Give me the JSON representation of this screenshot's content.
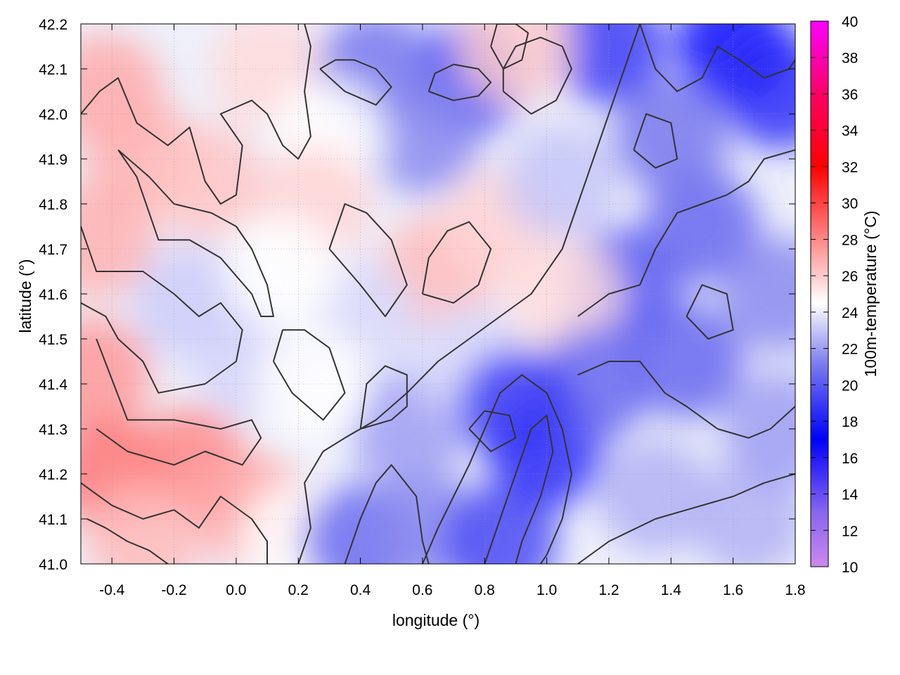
{
  "chart_data": {
    "type": "heatmap",
    "title": "",
    "xlabel": "longitude (°)",
    "ylabel": "latitude (°)",
    "colorbar_label": "100m-temperature (°C)",
    "xlim": [
      -0.5,
      1.8
    ],
    "ylim": [
      41.0,
      42.2
    ],
    "x_ticks": [
      -0.4,
      -0.2,
      0.0,
      0.2,
      0.4,
      0.6,
      0.8,
      1.0,
      1.2,
      1.4,
      1.6,
      1.8
    ],
    "x_tick_labels": [
      "-0.4",
      "-0.2",
      "0.0",
      "0.2",
      "0.4",
      "0.6",
      "0.8",
      "1.0",
      "1.2",
      "1.4",
      "1.6",
      "1.8"
    ],
    "y_ticks": [
      41.0,
      41.1,
      41.2,
      41.3,
      41.4,
      41.5,
      41.6,
      41.7,
      41.8,
      41.9,
      42.0,
      42.1,
      42.2
    ],
    "y_tick_labels": [
      "41.0",
      "41.1",
      "41.2",
      "41.3",
      "41.4",
      "41.5",
      "41.6",
      "41.7",
      "41.8",
      "41.9",
      "42.0",
      "42.1",
      "42.2"
    ],
    "colorbar_range": [
      10,
      40
    ],
    "colorbar_ticks": [
      10,
      12,
      14,
      16,
      18,
      20,
      22,
      24,
      26,
      28,
      30,
      32,
      34,
      36,
      38,
      40
    ],
    "colorbar_tick_labels": [
      "10",
      "12",
      "14",
      "16",
      "18",
      "20",
      "22",
      "24",
      "26",
      "28",
      "30",
      "32",
      "34",
      "36",
      "38",
      "40"
    ],
    "colorscale": [
      {
        "value": 10,
        "color": "#cc88ee"
      },
      {
        "value": 13,
        "color": "#8866ee"
      },
      {
        "value": 17,
        "color": "#0000ff"
      },
      {
        "value": 21,
        "color": "#7777ee"
      },
      {
        "value": 24.5,
        "color": "#ffffff"
      },
      {
        "value": 28,
        "color": "#ff8888"
      },
      {
        "value": 32,
        "color": "#ff0000"
      },
      {
        "value": 36,
        "color": "#ff0066"
      },
      {
        "value": 40,
        "color": "#ff00ff"
      }
    ],
    "grid": true,
    "contour_color": "#333333",
    "field_samples": [
      {
        "x": -0.42,
        "y": 42.05,
        "t": 27.0
      },
      {
        "x": -0.3,
        "y": 41.9,
        "t": 26.8
      },
      {
        "x": -0.1,
        "y": 41.85,
        "t": 26.2
      },
      {
        "x": 0.1,
        "y": 42.1,
        "t": 25.6
      },
      {
        "x": -0.45,
        "y": 41.72,
        "t": 26.8
      },
      {
        "x": -0.15,
        "y": 41.58,
        "t": 23.2
      },
      {
        "x": 0.05,
        "y": 41.45,
        "t": 23.4
      },
      {
        "x": -0.46,
        "y": 41.42,
        "t": 27.5
      },
      {
        "x": -0.4,
        "y": 41.2,
        "t": 28.5
      },
      {
        "x": -0.15,
        "y": 41.22,
        "t": 28.0
      },
      {
        "x": 0.05,
        "y": 41.12,
        "t": 27.0
      },
      {
        "x": -0.3,
        "y": 41.05,
        "t": 26.5
      },
      {
        "x": 0.2,
        "y": 41.05,
        "t": 24.5
      },
      {
        "x": 0.4,
        "y": 41.05,
        "t": 20.5
      },
      {
        "x": 0.6,
        "y": 41.08,
        "t": 21.5
      },
      {
        "x": 0.85,
        "y": 41.05,
        "t": 19.5
      },
      {
        "x": 0.55,
        "y": 41.3,
        "t": 22.0
      },
      {
        "x": 1.0,
        "y": 41.25,
        "t": 18.5
      },
      {
        "x": 1.35,
        "y": 41.15,
        "t": 22.5
      },
      {
        "x": 1.65,
        "y": 41.1,
        "t": 22.5
      },
      {
        "x": 1.75,
        "y": 41.3,
        "t": 22.0
      },
      {
        "x": 1.45,
        "y": 41.45,
        "t": 20.5
      },
      {
        "x": 1.25,
        "y": 41.62,
        "t": 20.0
      },
      {
        "x": 1.5,
        "y": 41.75,
        "t": 20.5
      },
      {
        "x": 1.75,
        "y": 41.6,
        "t": 21.5
      },
      {
        "x": 1.4,
        "y": 41.95,
        "t": 21.0
      },
      {
        "x": 1.6,
        "y": 42.15,
        "t": 17.5
      },
      {
        "x": 1.75,
        "y": 42.05,
        "t": 18.5
      },
      {
        "x": 1.2,
        "y": 42.15,
        "t": 19.0
      },
      {
        "x": 0.75,
        "y": 42.08,
        "t": 19.5
      },
      {
        "x": 0.9,
        "y": 42.15,
        "t": 26.0
      },
      {
        "x": 0.45,
        "y": 42.1,
        "t": 21.0
      },
      {
        "x": 0.6,
        "y": 41.95,
        "t": 21.5
      },
      {
        "x": 0.3,
        "y": 41.95,
        "t": 24.5
      },
      {
        "x": 0.25,
        "y": 41.8,
        "t": 25.8
      },
      {
        "x": 0.65,
        "y": 41.65,
        "t": 26.5
      },
      {
        "x": 0.85,
        "y": 41.75,
        "t": 25.8
      },
      {
        "x": 1.05,
        "y": 41.85,
        "t": 23.0
      },
      {
        "x": 1.05,
        "y": 41.6,
        "t": 25.5
      },
      {
        "x": 0.4,
        "y": 41.55,
        "t": 23.5
      },
      {
        "x": 0.25,
        "y": 41.4,
        "t": 24.5
      },
      {
        "x": 0.75,
        "y": 41.45,
        "t": 23.5
      },
      {
        "x": 0.15,
        "y": 41.65,
        "t": 24.5
      },
      {
        "x": 1.15,
        "y": 41.4,
        "t": 20.5
      },
      {
        "x": 0.9,
        "y": 41.35,
        "t": 19.0
      }
    ],
    "contour_paths": [
      [
        [
          -0.5,
          42.0
        ],
        [
          -0.44,
          42.05
        ],
        [
          -0.38,
          42.08
        ],
        [
          -0.32,
          41.98
        ],
        [
          -0.22,
          41.93
        ],
        [
          -0.15,
          41.97
        ],
        [
          -0.1,
          41.85
        ],
        [
          -0.05,
          41.8
        ],
        [
          0.0,
          41.82
        ],
        [
          0.02,
          41.93
        ],
        [
          -0.05,
          42.0
        ],
        [
          0.05,
          42.03
        ],
        [
          0.1,
          42.0
        ],
        [
          0.15,
          41.93
        ],
        [
          0.2,
          41.9
        ],
        [
          0.24,
          41.95
        ],
        [
          0.22,
          42.05
        ],
        [
          0.24,
          42.15
        ],
        [
          0.22,
          42.2
        ]
      ],
      [
        [
          -0.38,
          41.92
        ],
        [
          -0.32,
          41.86
        ],
        [
          -0.28,
          41.78
        ],
        [
          -0.25,
          41.72
        ],
        [
          -0.15,
          41.72
        ],
        [
          -0.05,
          41.68
        ],
        [
          0.05,
          41.6
        ],
        [
          0.08,
          41.55
        ],
        [
          0.12,
          41.55
        ],
        [
          0.1,
          41.62
        ],
        [
          0.05,
          41.7
        ],
        [
          0.0,
          41.75
        ],
        [
          -0.08,
          41.78
        ],
        [
          -0.2,
          41.8
        ],
        [
          -0.28,
          41.86
        ],
        [
          -0.38,
          41.92
        ]
      ],
      [
        [
          -0.5,
          41.75
        ],
        [
          -0.45,
          41.65
        ],
        [
          -0.3,
          41.65
        ],
        [
          -0.2,
          41.6
        ],
        [
          -0.12,
          41.55
        ],
        [
          -0.05,
          41.58
        ],
        [
          0.02,
          41.52
        ],
        [
          0.0,
          41.45
        ],
        [
          -0.1,
          41.4
        ],
        [
          -0.25,
          41.38
        ],
        [
          -0.3,
          41.45
        ],
        [
          -0.38,
          41.5
        ],
        [
          -0.42,
          41.55
        ],
        [
          -0.5,
          41.58
        ]
      ],
      [
        [
          -0.45,
          41.5
        ],
        [
          -0.35,
          41.32
        ],
        [
          -0.2,
          41.32
        ],
        [
          -0.05,
          41.3
        ],
        [
          0.05,
          41.32
        ],
        [
          0.08,
          41.28
        ],
        [
          0.02,
          41.22
        ],
        [
          -0.1,
          41.25
        ],
        [
          -0.2,
          41.22
        ],
        [
          -0.35,
          41.25
        ],
        [
          -0.45,
          41.3
        ]
      ],
      [
        [
          -0.5,
          41.18
        ],
        [
          -0.4,
          41.13
        ],
        [
          -0.3,
          41.1
        ],
        [
          -0.2,
          41.12
        ],
        [
          -0.12,
          41.08
        ],
        [
          -0.05,
          41.15
        ],
        [
          0.05,
          41.1
        ],
        [
          0.1,
          41.05
        ],
        [
          0.1,
          41.0
        ]
      ],
      [
        [
          -0.48,
          41.1
        ],
        [
          -0.42,
          41.08
        ],
        [
          -0.35,
          41.05
        ],
        [
          -0.28,
          41.03
        ],
        [
          -0.22,
          41.0
        ]
      ],
      [
        [
          0.2,
          41.0
        ],
        [
          0.24,
          41.08
        ],
        [
          0.22,
          41.18
        ],
        [
          0.28,
          41.25
        ],
        [
          0.35,
          41.28
        ],
        [
          0.45,
          41.32
        ],
        [
          0.55,
          41.38
        ],
        [
          0.65,
          41.45
        ],
        [
          0.75,
          41.5
        ],
        [
          0.85,
          41.55
        ],
        [
          0.95,
          41.6
        ],
        [
          1.05,
          41.7
        ],
        [
          1.1,
          41.8
        ],
        [
          1.15,
          41.9
        ],
        [
          1.2,
          42.0
        ],
        [
          1.25,
          42.1
        ],
        [
          1.3,
          42.2
        ]
      ],
      [
        [
          0.35,
          41.0
        ],
        [
          0.4,
          41.1
        ],
        [
          0.45,
          41.18
        ],
        [
          0.5,
          41.22
        ],
        [
          0.58,
          41.15
        ],
        [
          0.6,
          41.05
        ],
        [
          0.62,
          41.0
        ]
      ],
      [
        [
          0.6,
          41.0
        ],
        [
          0.65,
          41.08
        ],
        [
          0.7,
          41.15
        ],
        [
          0.75,
          41.22
        ],
        [
          0.8,
          41.3
        ],
        [
          0.85,
          41.38
        ],
        [
          0.92,
          41.42
        ],
        [
          1.0,
          41.38
        ],
        [
          1.05,
          41.3
        ],
        [
          1.08,
          41.2
        ],
        [
          1.05,
          41.1
        ],
        [
          1.0,
          41.02
        ],
        [
          0.98,
          41.0
        ]
      ],
      [
        [
          0.8,
          41.0
        ],
        [
          0.85,
          41.1
        ],
        [
          0.9,
          41.2
        ],
        [
          0.95,
          41.3
        ],
        [
          1.0,
          41.33
        ],
        [
          1.02,
          41.25
        ],
        [
          0.98,
          41.15
        ],
        [
          0.92,
          41.05
        ],
        [
          0.9,
          41.0
        ]
      ],
      [
        [
          1.1,
          41.0
        ],
        [
          1.2,
          41.05
        ],
        [
          1.35,
          41.1
        ],
        [
          1.45,
          41.12
        ],
        [
          1.6,
          41.15
        ],
        [
          1.7,
          41.18
        ],
        [
          1.8,
          41.2
        ]
      ],
      [
        [
          1.1,
          41.42
        ],
        [
          1.2,
          41.45
        ],
        [
          1.3,
          41.45
        ],
        [
          1.38,
          41.38
        ],
        [
          1.45,
          41.35
        ],
        [
          1.55,
          41.3
        ],
        [
          1.65,
          41.28
        ],
        [
          1.72,
          41.3
        ],
        [
          1.8,
          41.35
        ]
      ],
      [
        [
          1.1,
          41.55
        ],
        [
          1.2,
          41.6
        ],
        [
          1.3,
          41.62
        ],
        [
          1.35,
          41.7
        ],
        [
          1.42,
          41.78
        ],
        [
          1.5,
          41.8
        ],
        [
          1.58,
          41.82
        ],
        [
          1.65,
          41.85
        ],
        [
          1.7,
          41.9
        ],
        [
          1.8,
          41.92
        ]
      ],
      [
        [
          1.3,
          42.2
        ],
        [
          1.35,
          42.1
        ],
        [
          1.42,
          42.05
        ],
        [
          1.5,
          42.08
        ],
        [
          1.55,
          42.15
        ],
        [
          1.62,
          42.12
        ],
        [
          1.7,
          42.08
        ],
        [
          1.78,
          42.1
        ],
        [
          1.8,
          42.12
        ]
      ],
      [
        [
          0.27,
          42.1
        ],
        [
          0.35,
          42.05
        ],
        [
          0.45,
          42.02
        ],
        [
          0.5,
          42.06
        ],
        [
          0.45,
          42.1
        ],
        [
          0.38,
          42.12
        ],
        [
          0.32,
          42.12
        ],
        [
          0.27,
          42.1
        ]
      ],
      [
        [
          0.62,
          42.05
        ],
        [
          0.7,
          42.03
        ],
        [
          0.78,
          42.04
        ],
        [
          0.82,
          42.07
        ],
        [
          0.78,
          42.1
        ],
        [
          0.7,
          42.11
        ],
        [
          0.64,
          42.09
        ],
        [
          0.62,
          42.05
        ]
      ],
      [
        [
          0.86,
          42.05
        ],
        [
          0.95,
          42.0
        ],
        [
          1.03,
          42.03
        ],
        [
          1.08,
          42.1
        ],
        [
          1.05,
          42.15
        ],
        [
          0.98,
          42.17
        ],
        [
          0.9,
          42.15
        ],
        [
          0.86,
          42.1
        ],
        [
          0.86,
          42.05
        ]
      ],
      [
        [
          0.82,
          42.15
        ],
        [
          0.86,
          42.1
        ],
        [
          0.92,
          42.12
        ],
        [
          0.94,
          42.18
        ],
        [
          0.9,
          42.2
        ],
        [
          0.84,
          42.2
        ],
        [
          0.82,
          42.15
        ]
      ],
      [
        [
          0.4,
          41.3
        ],
        [
          0.5,
          41.32
        ],
        [
          0.55,
          41.35
        ],
        [
          0.55,
          41.42
        ],
        [
          0.48,
          41.44
        ],
        [
          0.42,
          41.4
        ],
        [
          0.4,
          41.3
        ]
      ],
      [
        [
          0.3,
          41.7
        ],
        [
          0.4,
          41.62
        ],
        [
          0.48,
          41.55
        ],
        [
          0.55,
          41.62
        ],
        [
          0.5,
          41.72
        ],
        [
          0.42,
          41.78
        ],
        [
          0.35,
          41.8
        ],
        [
          0.3,
          41.7
        ]
      ],
      [
        [
          0.6,
          41.6
        ],
        [
          0.7,
          41.58
        ],
        [
          0.78,
          41.62
        ],
        [
          0.82,
          41.7
        ],
        [
          0.75,
          41.76
        ],
        [
          0.68,
          41.74
        ],
        [
          0.62,
          41.68
        ],
        [
          0.6,
          41.6
        ]
      ],
      [
        [
          0.12,
          41.45
        ],
        [
          0.18,
          41.38
        ],
        [
          0.28,
          41.32
        ],
        [
          0.35,
          41.38
        ],
        [
          0.3,
          41.48
        ],
        [
          0.22,
          41.52
        ],
        [
          0.15,
          41.52
        ],
        [
          0.12,
          41.45
        ]
      ],
      [
        [
          0.75,
          41.3
        ],
        [
          0.82,
          41.25
        ],
        [
          0.9,
          41.28
        ],
        [
          0.88,
          41.33
        ],
        [
          0.8,
          41.34
        ],
        [
          0.75,
          41.3
        ]
      ],
      [
        [
          1.45,
          41.55
        ],
        [
          1.52,
          41.5
        ],
        [
          1.6,
          41.52
        ],
        [
          1.58,
          41.6
        ],
        [
          1.5,
          41.62
        ],
        [
          1.45,
          41.55
        ]
      ],
      [
        [
          1.28,
          41.92
        ],
        [
          1.35,
          41.88
        ],
        [
          1.42,
          41.9
        ],
        [
          1.4,
          41.98
        ],
        [
          1.32,
          42.0
        ],
        [
          1.28,
          41.92
        ]
      ]
    ]
  }
}
